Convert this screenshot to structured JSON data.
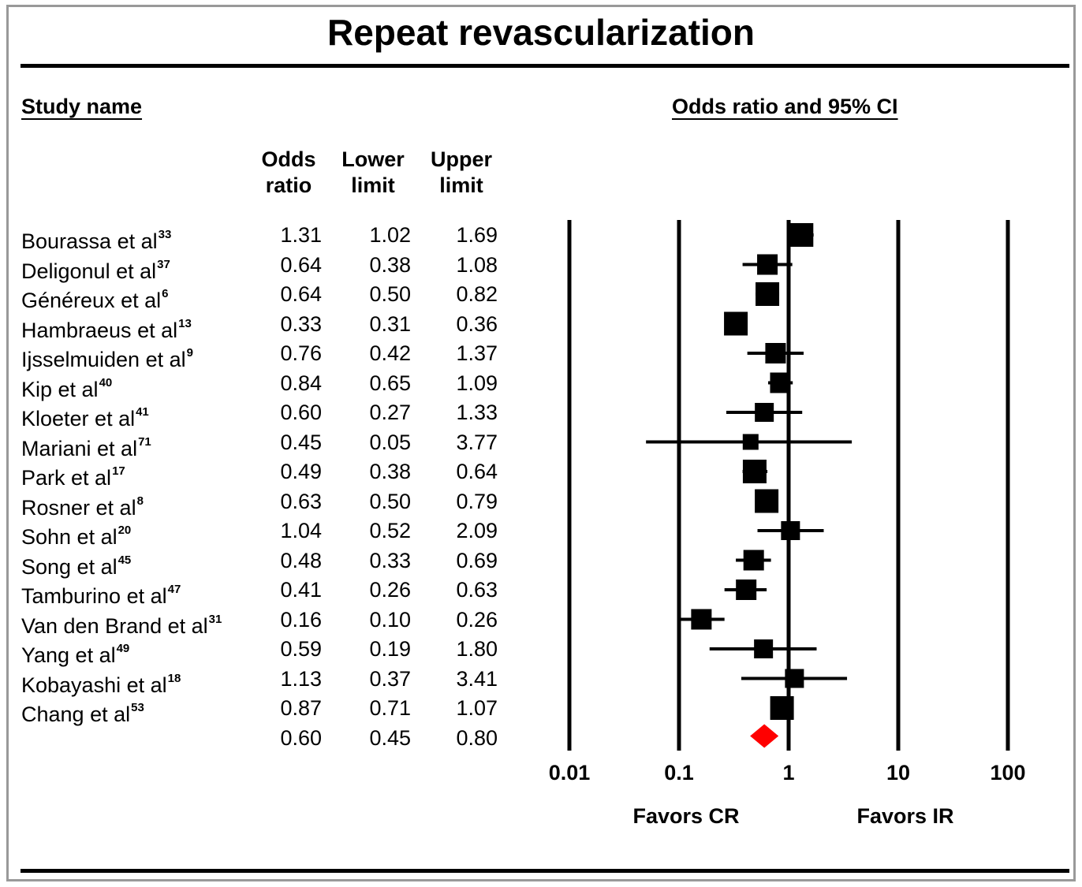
{
  "title": "Repeat revascularization",
  "headers": {
    "study": "Study name",
    "plot": "Odds ratio and 95% CI",
    "or": [
      "Odds",
      "ratio"
    ],
    "lower": [
      "Lower",
      "limit"
    ],
    "upper": [
      "Upper",
      "limit"
    ]
  },
  "favors": {
    "left": "Favors CR",
    "right": "Favors IR"
  },
  "chart_data": {
    "type": "forest",
    "title": "Repeat revascularization",
    "x_scale": "log",
    "xlim": [
      0.01,
      100
    ],
    "x_ticks": [
      "0.01",
      "0.1",
      "1",
      "10",
      "100"
    ],
    "vertical_lines_at": [
      0.01,
      0.1,
      1,
      10,
      100
    ],
    "studies": [
      {
        "name": "Bourassa et al",
        "ref": "33",
        "or": "1.31",
        "lower": "1.02",
        "upper": "1.69",
        "weight": "large"
      },
      {
        "name": "Deligonul et al",
        "ref": "37",
        "or": "0.64",
        "lower": "0.38",
        "upper": "1.08",
        "weight": "medium"
      },
      {
        "name": "Généreux et al",
        "ref": "6",
        "or": "0.64",
        "lower": "0.50",
        "upper": "0.82",
        "weight": "large"
      },
      {
        "name": "Hambraeus et al",
        "ref": "13",
        "or": "0.33",
        "lower": "0.31",
        "upper": "0.36",
        "weight": "large"
      },
      {
        "name": "Ijsselmuiden et al",
        "ref": "9",
        "or": "0.76",
        "lower": "0.42",
        "upper": "1.37",
        "weight": "medium"
      },
      {
        "name": "Kip et al",
        "ref": "40",
        "or": "0.84",
        "lower": "0.65",
        "upper": "1.09",
        "weight": "medium"
      },
      {
        "name": "Kloeter et al",
        "ref": "41",
        "or": "0.60",
        "lower": "0.27",
        "upper": "1.33",
        "weight": "small"
      },
      {
        "name": "Mariani et al",
        "ref": "71",
        "or": "0.45",
        "lower": "0.05",
        "upper": "3.77",
        "weight": "tiny"
      },
      {
        "name": "Park et al",
        "ref": "17",
        "or": "0.49",
        "lower": "0.38",
        "upper": "0.64",
        "weight": "large"
      },
      {
        "name": "Rosner et al",
        "ref": "8",
        "or": "0.63",
        "lower": "0.50",
        "upper": "0.79",
        "weight": "large"
      },
      {
        "name": "Sohn et al",
        "ref": "20",
        "or": "1.04",
        "lower": "0.52",
        "upper": "2.09",
        "weight": "small"
      },
      {
        "name": "Song et al",
        "ref": "45",
        "or": "0.48",
        "lower": "0.33",
        "upper": "0.69",
        "weight": "medium"
      },
      {
        "name": "Tamburino et al",
        "ref": "47",
        "or": "0.41",
        "lower": "0.26",
        "upper": "0.63",
        "weight": "medium"
      },
      {
        "name": "Van den Brand et al",
        "ref": "31",
        "or": "0.16",
        "lower": "0.10",
        "upper": "0.26",
        "weight": "medium"
      },
      {
        "name": "Yang et al",
        "ref": "49",
        "or": "0.59",
        "lower": "0.19",
        "upper": "1.80",
        "weight": "small"
      },
      {
        "name": "Kobayashi et al",
        "ref": "18",
        "or": "1.13",
        "lower": "0.37",
        "upper": "3.41",
        "weight": "small"
      },
      {
        "name": "Chang et al",
        "ref": "53",
        "or": "0.87",
        "lower": "0.71",
        "upper": "1.07",
        "weight": "large"
      }
    ],
    "pooled": {
      "or": "0.60",
      "lower": "0.45",
      "upper": "0.80"
    },
    "pooled_color": "#ff0000",
    "marker_color": "#000000"
  }
}
